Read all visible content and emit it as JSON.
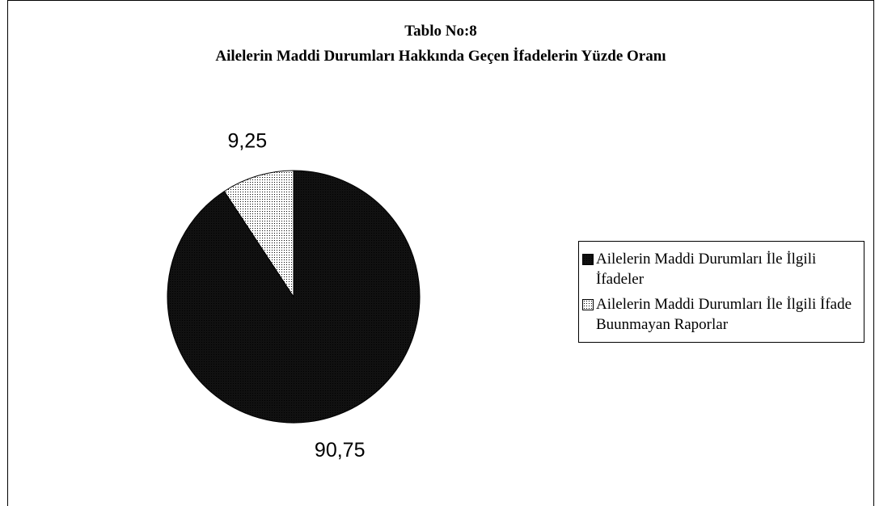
{
  "chart_data": {
    "type": "pie",
    "title": [
      "Tablo No:8",
      "Ailelerin Maddi Durumları Hakkında Geçen İfadelerin Yüzde Oranı"
    ],
    "categories": [
      "Ailelerin Maddi Durumları İle İlgili İfadeler",
      "Ailelerin Maddi Durumları İle İlgili İfade Buunmayan Raporlar"
    ],
    "values": [
      90.75,
      9.25
    ],
    "value_labels": [
      "90,75",
      "9,25"
    ],
    "colors": [
      "#111111",
      "#ffffff"
    ],
    "legend": "right"
  }
}
